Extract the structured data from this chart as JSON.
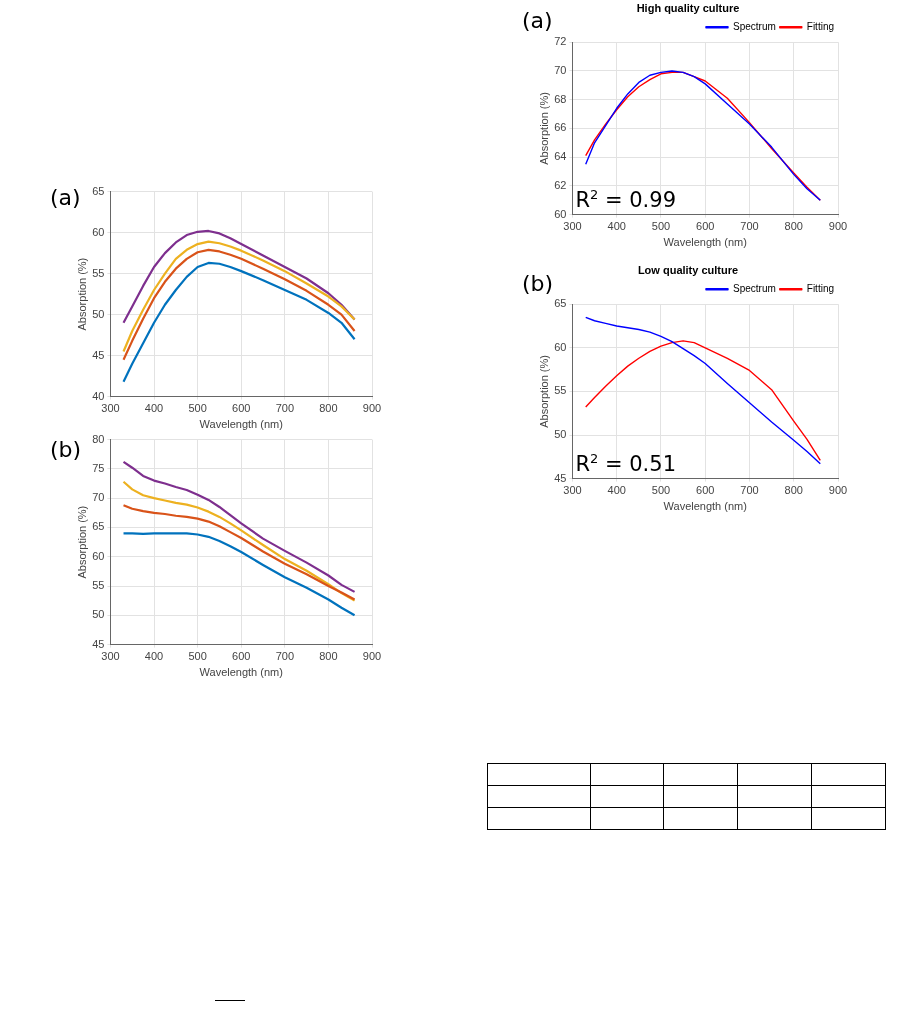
{
  "chart_data": [
    {
      "type": "line",
      "xlabel": "Wavelength (nm)",
      "ylabel": "Absorption (%)",
      "annotations": [
        "(a)"
      ],
      "x": [
        330,
        350,
        375,
        400,
        425,
        450,
        475,
        500,
        525,
        550,
        575,
        600,
        650,
        700,
        750,
        800,
        830,
        860
      ],
      "xlim": [
        300,
        900
      ],
      "xticks": [
        300,
        400,
        500,
        600,
        700,
        800,
        900
      ],
      "ylim": [
        40,
        65
      ],
      "yticks": [
        40,
        45,
        50,
        55,
        60,
        65
      ],
      "grid": true,
      "marker": "none",
      "line_style": "solid",
      "series": [
        {
          "color": "#0072bd",
          "values": [
            41.8,
            44,
            46.5,
            49,
            51.2,
            53,
            54.6,
            55.8,
            56.3,
            56.2,
            55.8,
            55.3,
            54.2,
            53,
            51.8,
            50.2,
            49,
            47
          ]
        },
        {
          "color": "#d95319",
          "values": [
            44.5,
            46.8,
            49.5,
            52,
            54,
            55.6,
            56.8,
            57.6,
            57.9,
            57.7,
            57.3,
            56.8,
            55.6,
            54.3,
            52.9,
            51.2,
            50,
            48
          ]
        },
        {
          "color": "#edb120",
          "values": [
            45.5,
            48,
            50.6,
            53,
            55,
            56.8,
            57.9,
            58.6,
            58.9,
            58.7,
            58.3,
            57.8,
            56.6,
            55.3,
            53.8,
            52.2,
            51,
            49.4
          ]
        },
        {
          "color": "#7e2f8e",
          "values": [
            49,
            51,
            53.5,
            55.8,
            57.5,
            58.8,
            59.7,
            60.1,
            60.2,
            59.9,
            59.3,
            58.6,
            57.2,
            55.8,
            54.4,
            52.6,
            51.2,
            49.4
          ]
        }
      ]
    },
    {
      "type": "line",
      "xlabel": "Wavelength (nm)",
      "ylabel": "Absorption (%)",
      "annotations": [
        "(b)"
      ],
      "x": [
        330,
        350,
        375,
        400,
        425,
        450,
        475,
        500,
        525,
        550,
        575,
        600,
        650,
        700,
        750,
        800,
        830,
        860
      ],
      "xlim": [
        300,
        900
      ],
      "xticks": [
        300,
        400,
        500,
        600,
        700,
        800,
        900
      ],
      "ylim": [
        45,
        80
      ],
      "yticks": [
        45,
        50,
        55,
        60,
        65,
        70,
        75,
        80
      ],
      "grid": true,
      "marker": "none",
      "line_style": "solid",
      "series": [
        {
          "color": "#0072bd",
          "values": [
            64,
            64,
            63.9,
            64,
            64,
            64,
            64,
            63.8,
            63.4,
            62.7,
            61.8,
            60.8,
            58.6,
            56.5,
            54.7,
            52.7,
            51.3,
            50
          ]
        },
        {
          "color": "#d95319",
          "values": [
            68.8,
            68.2,
            67.8,
            67.5,
            67.3,
            67,
            66.8,
            66.5,
            66,
            65.2,
            64.2,
            63.2,
            60.9,
            58.8,
            57,
            55,
            53.9,
            52.7
          ]
        },
        {
          "color": "#edb120",
          "values": [
            72.8,
            71.5,
            70.5,
            70,
            69.6,
            69.2,
            68.9,
            68.4,
            67.7,
            66.8,
            65.7,
            64.5,
            62,
            59.6,
            57.6,
            55.3,
            53.8,
            52.5
          ]
        },
        {
          "color": "#7e2f8e",
          "values": [
            76.2,
            75.2,
            73.8,
            73,
            72.5,
            71.9,
            71.4,
            70.6,
            69.7,
            68.5,
            67.1,
            65.7,
            63.1,
            61,
            59,
            56.8,
            55.2,
            54
          ]
        }
      ]
    },
    {
      "type": "line",
      "title": "High quality culture",
      "xlabel": "Wavelength (nm)",
      "ylabel": "Absorption (%)",
      "annotations": [
        "(a)",
        "R$^{2}$ = 0.99"
      ],
      "x": [
        330,
        350,
        375,
        400,
        425,
        450,
        475,
        500,
        525,
        550,
        575,
        600,
        650,
        700,
        750,
        800,
        830,
        860
      ],
      "xlim": [
        300,
        900
      ],
      "xticks": [
        300,
        400,
        500,
        600,
        700,
        800,
        900
      ],
      "ylim": [
        60,
        72
      ],
      "yticks": [
        60,
        62,
        64,
        66,
        68,
        70,
        72
      ],
      "grid": true,
      "legend": "top right",
      "marker": "none",
      "line_style": "solid",
      "series": [
        {
          "name": "Spectrum",
          "color": "#0000ff",
          "values": [
            63.5,
            65,
            66.2,
            67.4,
            68.4,
            69.2,
            69.7,
            69.9,
            70,
            69.9,
            69.6,
            69.1,
            67.7,
            66.3,
            64.7,
            62.8,
            61.8,
            61
          ]
        },
        {
          "name": "Fitting",
          "color": "#ff0000",
          "values": [
            64.1,
            65.2,
            66.3,
            67.3,
            68.2,
            68.9,
            69.4,
            69.8,
            69.9,
            69.9,
            69.6,
            69.3,
            68.1,
            66.4,
            64.6,
            62.9,
            61.9,
            61
          ]
        }
      ]
    },
    {
      "type": "line",
      "title": "Low quality culture",
      "xlabel": "Wavelength (nm)",
      "ylabel": "Absorption (%)",
      "annotations": [
        "(b)",
        "R$^{2}$ = 0.51"
      ],
      "x": [
        330,
        350,
        375,
        400,
        425,
        450,
        475,
        500,
        525,
        550,
        575,
        600,
        650,
        700,
        750,
        800,
        830,
        860
      ],
      "xlim": [
        300,
        900
      ],
      "xticks": [
        300,
        400,
        500,
        600,
        700,
        800,
        900
      ],
      "ylim": [
        45,
        65
      ],
      "yticks": [
        45,
        50,
        55,
        60,
        65
      ],
      "grid": true,
      "legend": "top right",
      "marker": "none",
      "line_style": "solid",
      "series": [
        {
          "name": "Spectrum",
          "color": "#0000ff",
          "values": [
            63.5,
            63.1,
            62.8,
            62.5,
            62.3,
            62.1,
            61.8,
            61.3,
            60.7,
            59.9,
            59.1,
            58.2,
            55.9,
            53.7,
            51.5,
            49.4,
            48.1,
            46.7
          ]
        },
        {
          "name": "Fitting",
          "color": "#ff0000",
          "values": [
            53.2,
            54.3,
            55.6,
            56.8,
            57.9,
            58.8,
            59.6,
            60.2,
            60.6,
            60.8,
            60.6,
            60,
            58.8,
            57.4,
            55.2,
            51.6,
            49.5,
            47.1
          ]
        }
      ]
    }
  ]
}
